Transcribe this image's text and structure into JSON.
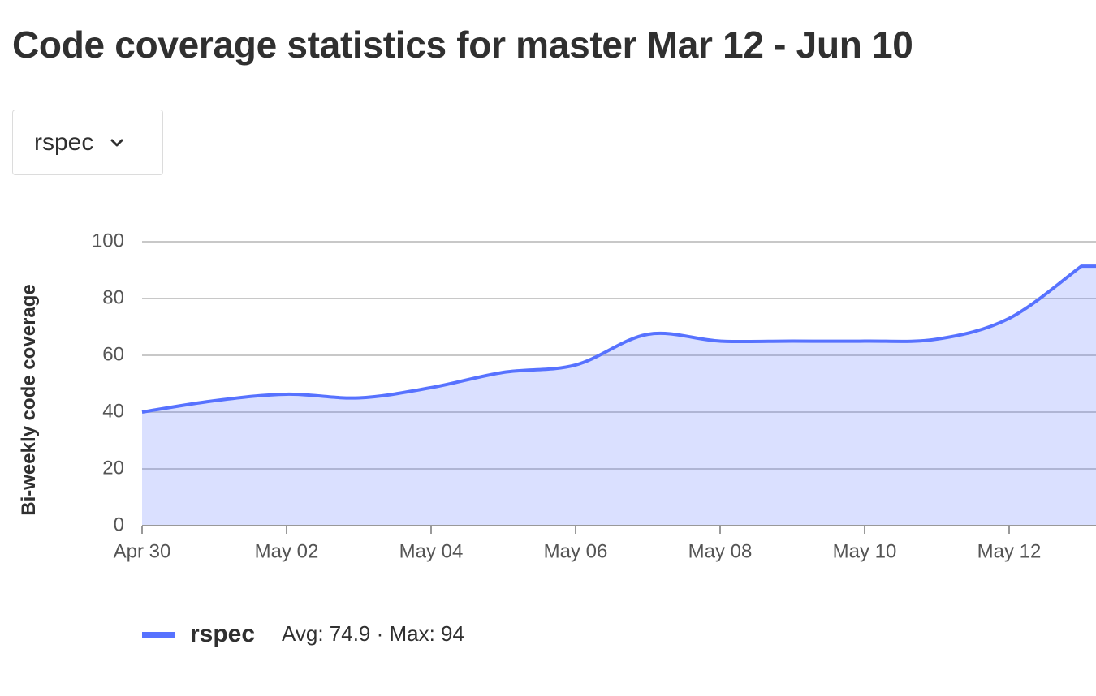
{
  "header": {
    "title": "Code coverage statistics for master Mar 12 - Jun 10"
  },
  "filter": {
    "selected": "rspec"
  },
  "legend": {
    "stats": "Avg: 74.9 · Max: 94"
  },
  "chart_data": {
    "type": "area",
    "ylabel": "Bi-weekly code coverage",
    "categories": [
      "Apr 30",
      null,
      "May 02",
      null,
      "May 04",
      null,
      "May 06",
      null,
      "May 08",
      null,
      "May 10",
      null,
      "May 12",
      null
    ],
    "series": [
      {
        "name": "rspec",
        "color": "#5772ff",
        "values": [
          40,
          44,
          46.3,
          45,
          48.6,
          54,
          56.6,
          67.4,
          65,
          65,
          65,
          65.7,
          73,
          91.4
        ]
      }
    ],
    "ylim": [
      0,
      100
    ],
    "yticks": [
      0,
      20,
      40,
      60,
      80,
      100
    ],
    "grid": true
  }
}
